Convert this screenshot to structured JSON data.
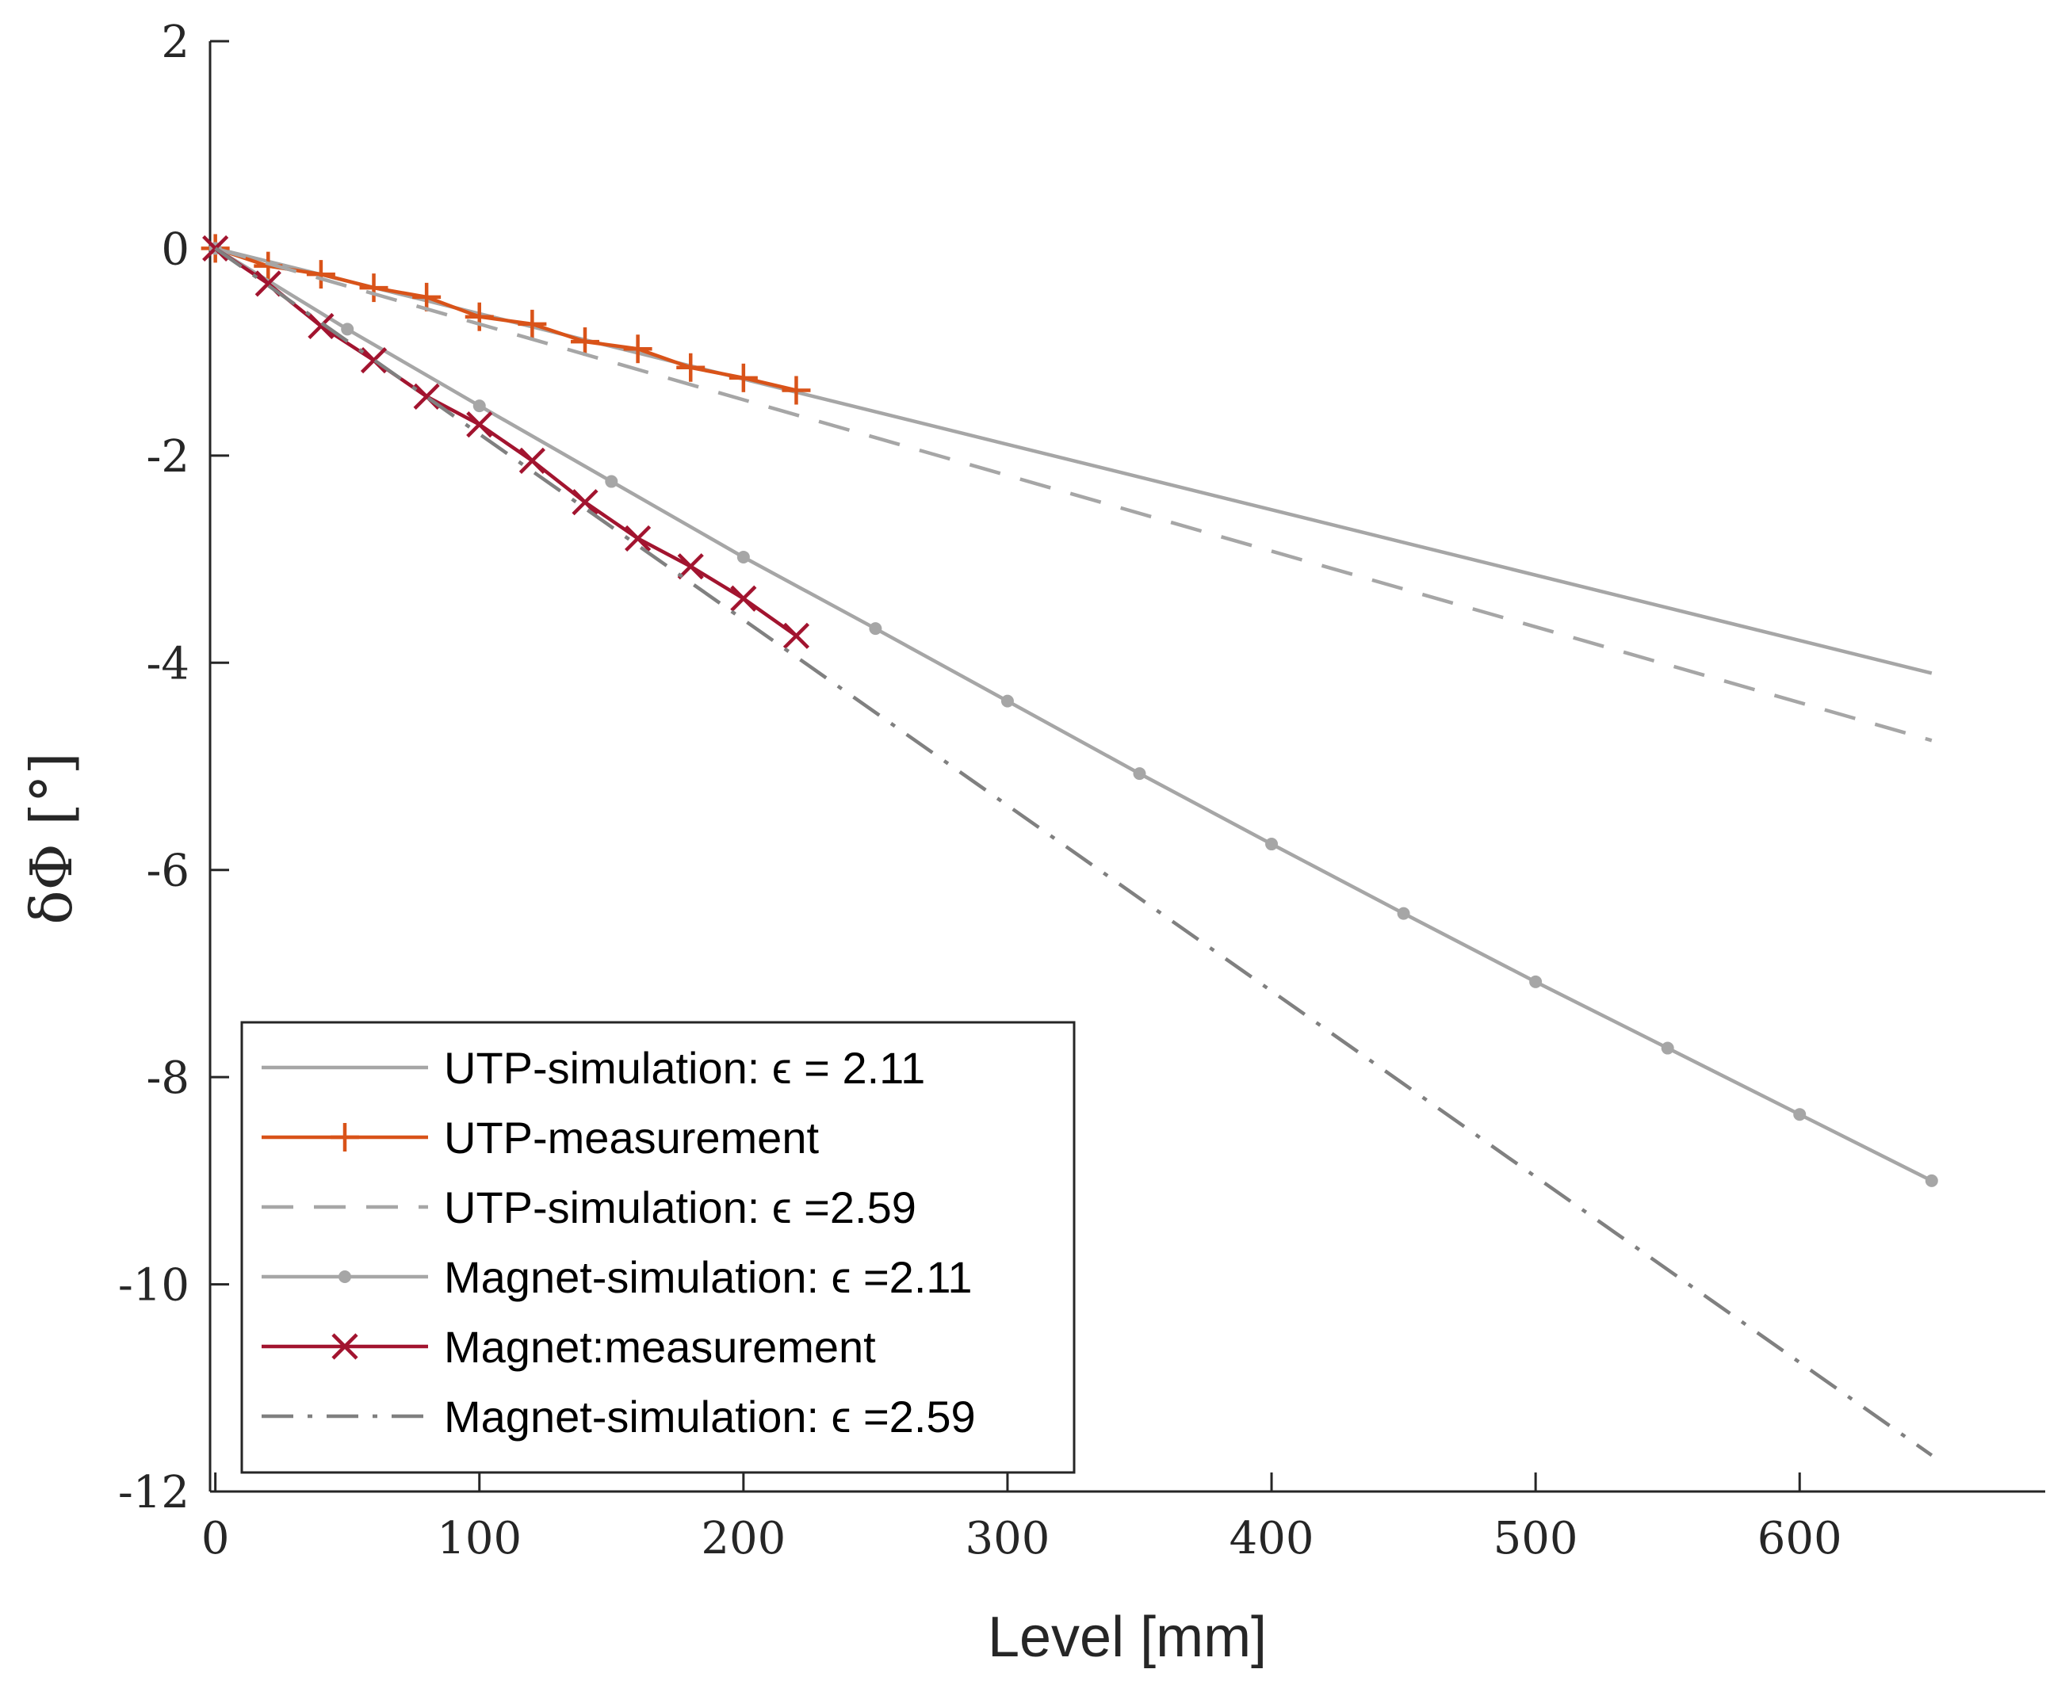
{
  "chart_data": {
    "type": "line",
    "title": "",
    "xlabel": "Level [mm]",
    "ylabel": "δΦ [°]",
    "xlim": [
      -2,
      693
    ],
    "ylim": [
      -12,
      2
    ],
    "xticks": [
      0,
      100,
      200,
      300,
      400,
      500,
      600
    ],
    "yticks": [
      2,
      0,
      -2,
      -4,
      -6,
      -8,
      -10,
      -12
    ],
    "legend_position": "bottom-left",
    "colors": {
      "axis": "#262626",
      "sim_light": "#a6a6a6",
      "sim_dark": "#808080",
      "utp_measurement": "#d95319",
      "magnet_measurement": "#a2142f"
    },
    "series": [
      {
        "name": "UTP-simulation: ϵ = 2.11",
        "style": "solid",
        "marker": "none",
        "color": "#a6a6a6",
        "x": [
          0,
          650
        ],
        "y": [
          0,
          -4.1
        ]
      },
      {
        "name": "UTP-measurement",
        "style": "solid",
        "marker": "plus",
        "color": "#d95319",
        "x": [
          0,
          20,
          40,
          60,
          80,
          100,
          120,
          140,
          160,
          180,
          200,
          220
        ],
        "y": [
          0,
          -0.17,
          -0.25,
          -0.38,
          -0.47,
          -0.66,
          -0.73,
          -0.9,
          -0.97,
          -1.15,
          -1.25,
          -1.37
        ]
      },
      {
        "name": "UTP-simulation: ϵ =2.59",
        "style": "dashed",
        "marker": "none",
        "color": "#a6a6a6",
        "x": [
          0,
          650
        ],
        "y": [
          0,
          -4.75
        ]
      },
      {
        "name": "Magnet-simulation: ϵ =2.11",
        "style": "solid",
        "marker": "dot",
        "color": "#a6a6a6",
        "x": [
          0,
          50,
          100,
          150,
          200,
          250,
          300,
          350,
          400,
          450,
          500,
          550,
          600,
          650
        ],
        "y": [
          0,
          -0.78,
          -1.52,
          -2.25,
          -2.98,
          -3.67,
          -4.37,
          -5.07,
          -5.75,
          -6.42,
          -7.08,
          -7.72,
          -8.36,
          -9.0
        ]
      },
      {
        "name": "Magnet:measurement",
        "style": "solid",
        "marker": "x",
        "color": "#a2142f",
        "x": [
          0,
          20,
          40,
          60,
          80,
          100,
          120,
          140,
          160,
          180,
          200,
          220
        ],
        "y": [
          0,
          -0.34,
          -0.75,
          -1.08,
          -1.43,
          -1.7,
          -2.05,
          -2.45,
          -2.8,
          -3.07,
          -3.38,
          -3.74
        ]
      },
      {
        "name": "Magnet-simulation: ϵ =2.59",
        "style": "dashdot",
        "marker": "none",
        "color": "#808080",
        "x": [
          0,
          650
        ],
        "y": [
          0,
          -11.65
        ]
      }
    ]
  }
}
